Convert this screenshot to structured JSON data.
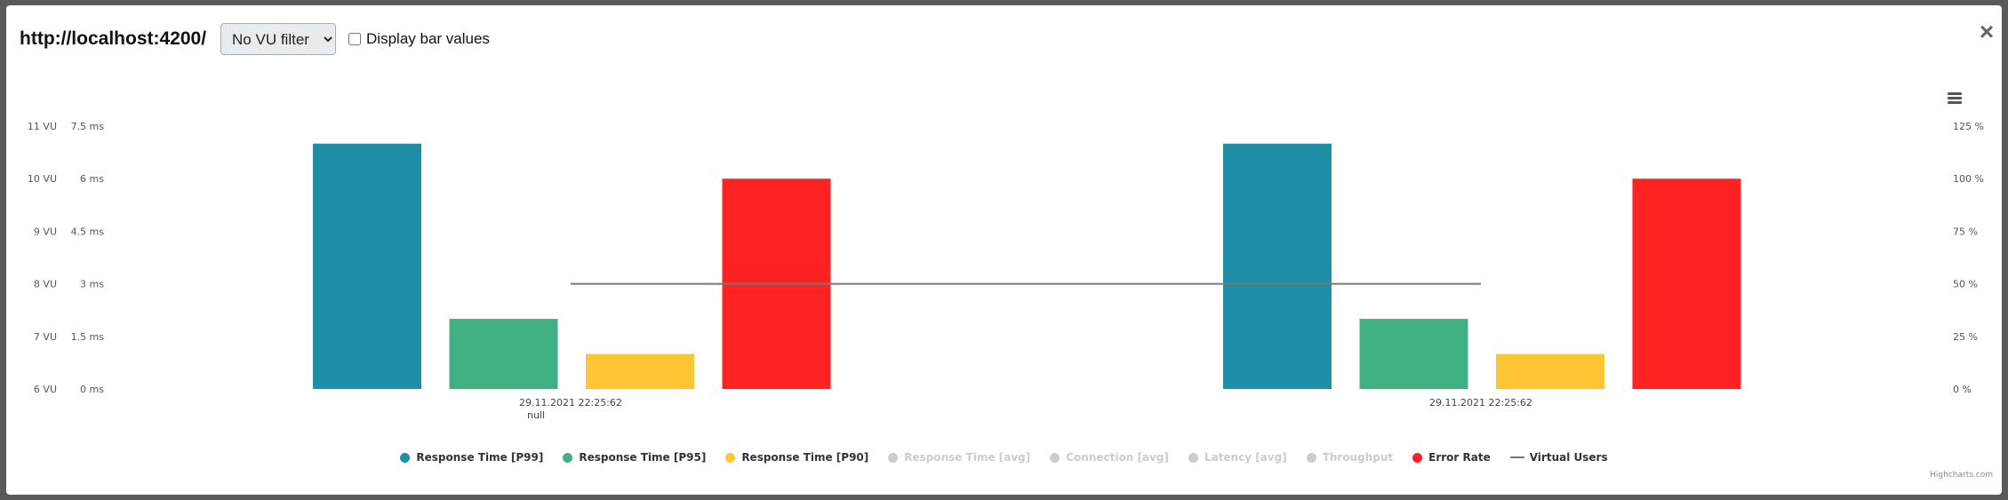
{
  "header": {
    "url": "http://localhost:4200/",
    "vu_filter_selected": "No VU filter",
    "display_bar_values_label": "Display bar values",
    "close_label": "×"
  },
  "credits": "Highcharts.com",
  "colors": {
    "p99": "#1f8fa8",
    "p95": "#40b082",
    "p90": "#ffc633",
    "error": "#ff2222",
    "vu_line": "#777777",
    "hidden": "#cccccc"
  },
  "legend": [
    {
      "name": "Response Time [P99]",
      "color": "#1f8fa8",
      "visible": true,
      "marker": "dot"
    },
    {
      "name": "Response Time [P95]",
      "color": "#40b082",
      "visible": true,
      "marker": "dot"
    },
    {
      "name": "Response Time [P90]",
      "color": "#ffc633",
      "visible": true,
      "marker": "dot"
    },
    {
      "name": "Response Time [avg]",
      "color": "#cccccc",
      "visible": false,
      "marker": "dot"
    },
    {
      "name": "Connection [avg]",
      "color": "#cccccc",
      "visible": false,
      "marker": "dot"
    },
    {
      "name": "Latency [avg]",
      "color": "#cccccc",
      "visible": false,
      "marker": "dot"
    },
    {
      "name": "Throughput",
      "color": "#cccccc",
      "visible": false,
      "marker": "dot"
    },
    {
      "name": "Error Rate",
      "color": "#ff2222",
      "visible": true,
      "marker": "dot"
    },
    {
      "name": "Virtual Users",
      "color": "#777777",
      "visible": true,
      "marker": "line"
    }
  ],
  "chart_data": {
    "type": "bar",
    "categories": [
      "29.11.2021 22:25:62",
      "29.11.2021 22:25:62"
    ],
    "category_sublabels": [
      "null",
      ""
    ],
    "series": [
      {
        "name": "Response Time [P99]",
        "axis": "ms",
        "values": [
          7,
          7
        ]
      },
      {
        "name": "Response Time [P95]",
        "axis": "ms",
        "values": [
          2,
          2
        ]
      },
      {
        "name": "Response Time [P90]",
        "axis": "ms",
        "values": [
          1,
          1
        ]
      },
      {
        "name": "Error Rate",
        "axis": "percent",
        "values": [
          100,
          100
        ]
      },
      {
        "name": "Virtual Users",
        "axis": "vu",
        "type": "line",
        "values": [
          8,
          8
        ]
      }
    ],
    "axes": {
      "vu": {
        "ticks": [
          "6 VU",
          "7 VU",
          "8 VU",
          "9 VU",
          "10 VU",
          "11 VU"
        ],
        "range": [
          6,
          11
        ]
      },
      "ms": {
        "ticks": [
          "0 ms",
          "1.5 ms",
          "3 ms",
          "4.5 ms",
          "6 ms",
          "7.5 ms"
        ],
        "range": [
          0,
          7.5
        ]
      },
      "percent": {
        "ticks": [
          "0 %",
          "25 %",
          "50 %",
          "75 %",
          "100 %",
          "125 %"
        ],
        "range": [
          0,
          125
        ]
      }
    }
  }
}
